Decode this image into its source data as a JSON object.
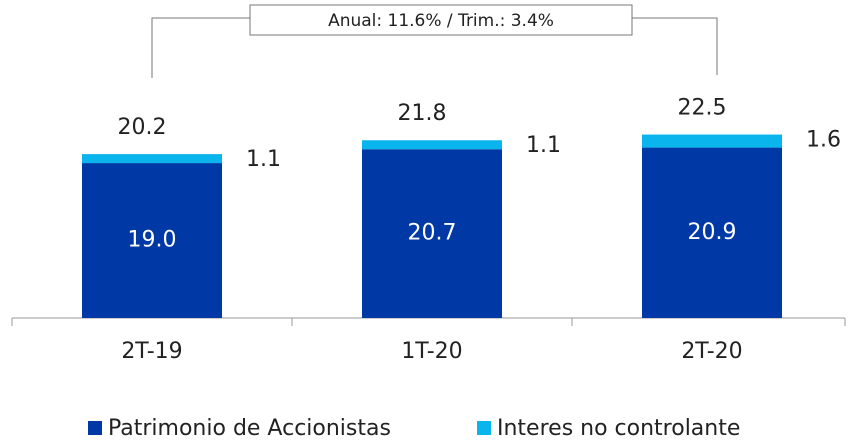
{
  "chart_data": {
    "type": "stacked_bar",
    "annotation": "Anual: 11.6% / Trim.: 3.4%",
    "categories": [
      "2T-19",
      "1T-20",
      "2T-20"
    ],
    "series": [
      {
        "name": "Patrimonio de Accionistas",
        "color": "#0039a6",
        "values": [
          19.0,
          20.7,
          20.9
        ],
        "value_labels": [
          "19.0",
          "20.7",
          "20.9"
        ]
      },
      {
        "name": "Interes no controlante",
        "color": "#0ab4ec",
        "values": [
          1.1,
          1.1,
          1.6
        ]
      }
    ],
    "totals": [
      20.2,
      21.8,
      22.5
    ],
    "ylim": [
      0,
      39
    ]
  }
}
